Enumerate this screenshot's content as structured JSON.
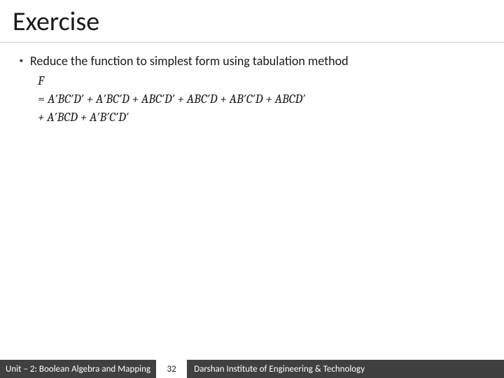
{
  "slide": {
    "title": "Exercise",
    "background": "#ffffff",
    "title_color": "#1a1a1a",
    "title_fontsize": 38,
    "divider_color": "#d0d0d0"
  },
  "content": {
    "bullet_marker": "▪",
    "bullet_text": "Reduce the function to simplest form using tabulation method",
    "formula_lhs": "F",
    "formula_eq": "=",
    "formula_line1": "A′BC′D′ + A′BC′D + ABC′D′ + ABC′D + AB′C′D + ABCD′",
    "formula_line2": "+ A′BCD + A′B′C′D′",
    "body_fontsize": 18,
    "formula_font": "Cambria",
    "text_color": "#1a1a1a"
  },
  "footer": {
    "left": "Unit – 2: Boolean Algebra and Mapping",
    "page": "32",
    "right": "Darshan Institute of Engineering & Technology",
    "bg": "#404040",
    "fg": "#ffffff",
    "page_bg": "#ffffff",
    "page_fg": "#1a1a1a",
    "fontsize": 13
  }
}
